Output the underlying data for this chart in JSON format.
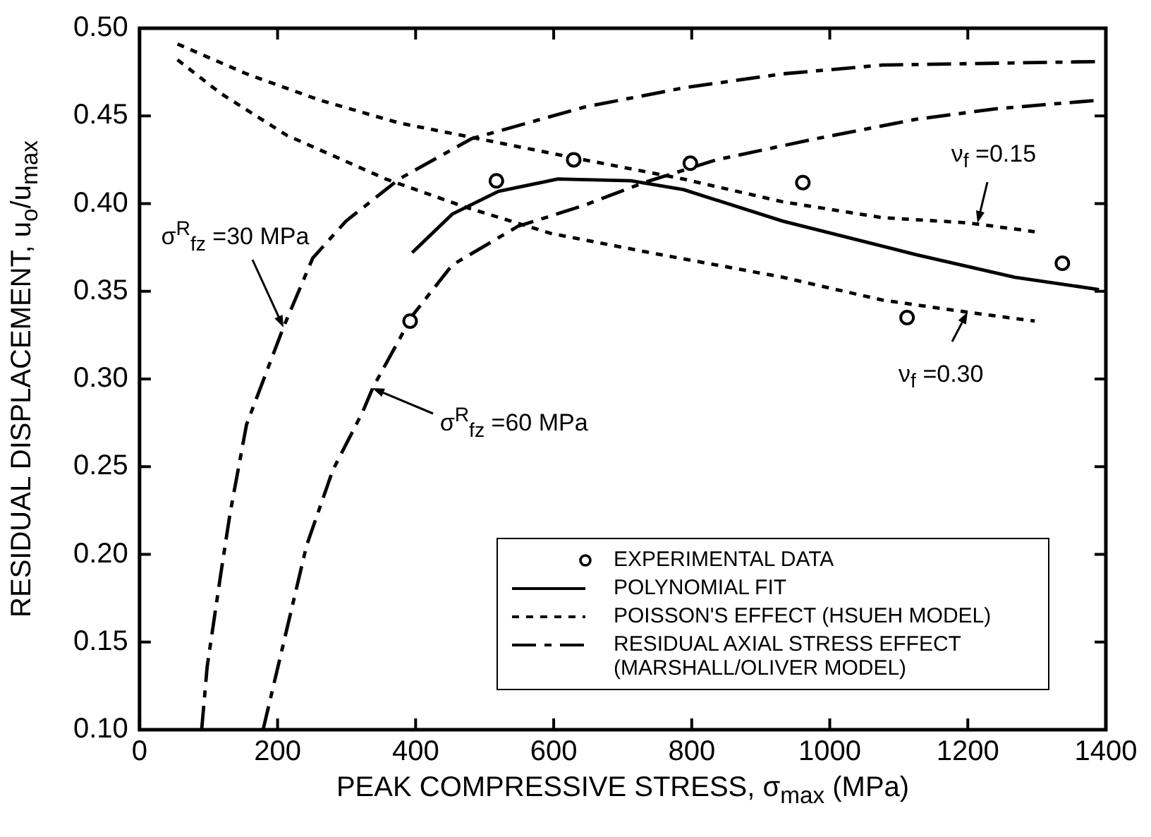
{
  "chart_data": {
    "type": "line",
    "xlabel": "PEAK COMPRESSIVE STRESS, σ$_{max}$ (MPa)",
    "ylabel": "RESIDUAL DISPLACEMENT, u$_{o}$/u$_{max}$",
    "xlim": [
      0,
      1400
    ],
    "xticks": [
      0,
      200,
      400,
      600,
      800,
      1000,
      1200,
      1400
    ],
    "ylim": [
      0.1,
      0.5
    ],
    "yticks": [
      {
        "value": 0.1,
        "label": "0.10"
      },
      {
        "value": 0.15,
        "label": "0.15"
      },
      {
        "value": 0.2,
        "label": "0.20"
      },
      {
        "value": 0.25,
        "label": "0.25"
      },
      {
        "value": 0.3,
        "label": "0.30"
      },
      {
        "value": 0.35,
        "label": "0.35"
      },
      {
        "value": 0.4,
        "label": "0.40"
      },
      {
        "value": 0.45,
        "label": "0.45"
      },
      {
        "value": 0.5,
        "label": "0.50"
      }
    ],
    "grid": false,
    "legend": "bottom right",
    "series": [
      {
        "name": "EXPERIMENTAL DATA",
        "type": "scatter",
        "marker": "circle",
        "color": "#000000",
        "x": [
          392,
          517,
          629,
          798,
          961,
          1112,
          1337
        ],
        "values": [
          0.333,
          0.413,
          0.425,
          0.423,
          0.412,
          0.335,
          0.366
        ]
      },
      {
        "name": "POLYNOMIAL FIT",
        "line_style": "solid",
        "marker": "none",
        "color": "#000000",
        "x": [
          395,
          453,
          520,
          606,
          712,
          788,
          932,
          1124,
          1268,
          1390
        ],
        "values": [
          0.372,
          0.394,
          0.407,
          0.414,
          0.413,
          0.408,
          0.39,
          0.371,
          0.358,
          0.351
        ]
      },
      {
        "name": "POISSON'S EFFECT (HSUEH MODEL)",
        "line_style": "dotted",
        "marker": "none",
        "color": "#000000",
        "x": [
          55,
          155,
          261,
          376,
          491,
          644,
          788,
          932,
          1076,
          1201,
          1297
        ],
        "values": [
          0.491,
          0.474,
          0.459,
          0.446,
          0.437,
          0.425,
          0.414,
          0.401,
          0.392,
          0.389,
          0.384
        ]
      },
      {
        "line_style": "dotted",
        "marker": "none",
        "color": "#000000",
        "x": [
          55,
          117,
          213,
          357,
          472,
          596,
          740,
          932,
          1076,
          1201,
          1297
        ],
        "values": [
          0.482,
          0.463,
          0.439,
          0.414,
          0.398,
          0.383,
          0.372,
          0.358,
          0.345,
          0.338,
          0.333
        ]
      },
      {
        "name": "RESIDUAL AXIAL STRESS EFFECT (MARSHALL/OLIVER MODEL)",
        "line_style": "dashed",
        "marker": "none",
        "color": "#000000",
        "x": [
          90,
          98,
          117,
          131,
          155,
          208,
          251,
          299,
          376,
          481,
          644,
          788,
          932,
          1076,
          1390
        ],
        "values": [
          0.1,
          0.136,
          0.187,
          0.223,
          0.274,
          0.329,
          0.369,
          0.39,
          0.414,
          0.437,
          0.455,
          0.466,
          0.474,
          0.479,
          0.481
        ]
      },
      {
        "line_style": "dashed",
        "marker": "none",
        "color": "#000000",
        "x": [
          179,
          203,
          242,
          280,
          323,
          338,
          395,
          453,
          548,
          644,
          731,
          836,
          980,
          1124,
          1239,
          1390
        ],
        "values": [
          0.1,
          0.14,
          0.205,
          0.248,
          0.281,
          0.295,
          0.336,
          0.365,
          0.387,
          0.399,
          0.412,
          0.425,
          0.437,
          0.448,
          0.454,
          0.459
        ]
      }
    ],
    "annotations": [
      {
        "text": "σ$^{R}$$_{fz}$ =30 MPa",
        "x": 208,
        "y": 0.329
      },
      {
        "text": "σ$^{R}$$_{fz}$ =60 MPa",
        "x": 338,
        "y": 0.295
      },
      {
        "text": "ν$_{f}$ =0.15",
        "x": 1215,
        "y": 0.389
      },
      {
        "text": "ν$_{f}$ =0.30",
        "x": 1200,
        "y": 0.338
      }
    ]
  }
}
